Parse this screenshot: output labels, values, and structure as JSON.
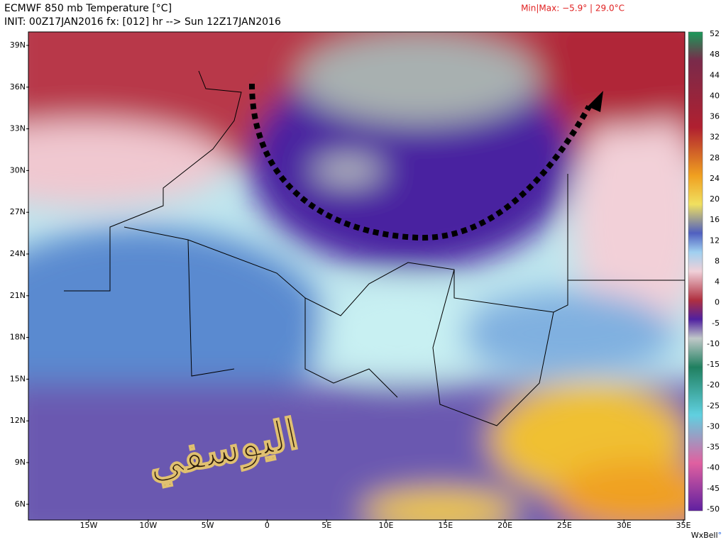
{
  "header": {
    "title": "ECMWF 850 mb Temperature [°C]",
    "init": "INIT: 00Z17JAN2016 fx: [012] hr --> Sun 12Z17JAN2016",
    "minmax": "Min|Max: −5.9° | 29.0°C"
  },
  "map": {
    "latitudes": [
      "39N",
      "36N",
      "33N",
      "30N",
      "27N",
      "24N",
      "21N",
      "18N",
      "15N",
      "12N",
      "9N",
      "6N"
    ],
    "longitudes": [
      "15W",
      "10W",
      "5W",
      "0",
      "5E",
      "10E",
      "15E",
      "20E",
      "25E",
      "30E",
      "35E"
    ],
    "watermark": "اليوسفي"
  },
  "colorbar": {
    "labels": [
      "52",
      "48",
      "44",
      "40",
      "36",
      "32",
      "28",
      "24",
      "20",
      "16",
      "12",
      "8",
      "4",
      "0",
      "-5",
      "-10",
      "-15",
      "-20",
      "-25",
      "-30",
      "-35",
      "-40",
      "-45",
      "-50"
    ]
  },
  "footer": {
    "brand": "WxBell",
    "mark": "°"
  }
}
